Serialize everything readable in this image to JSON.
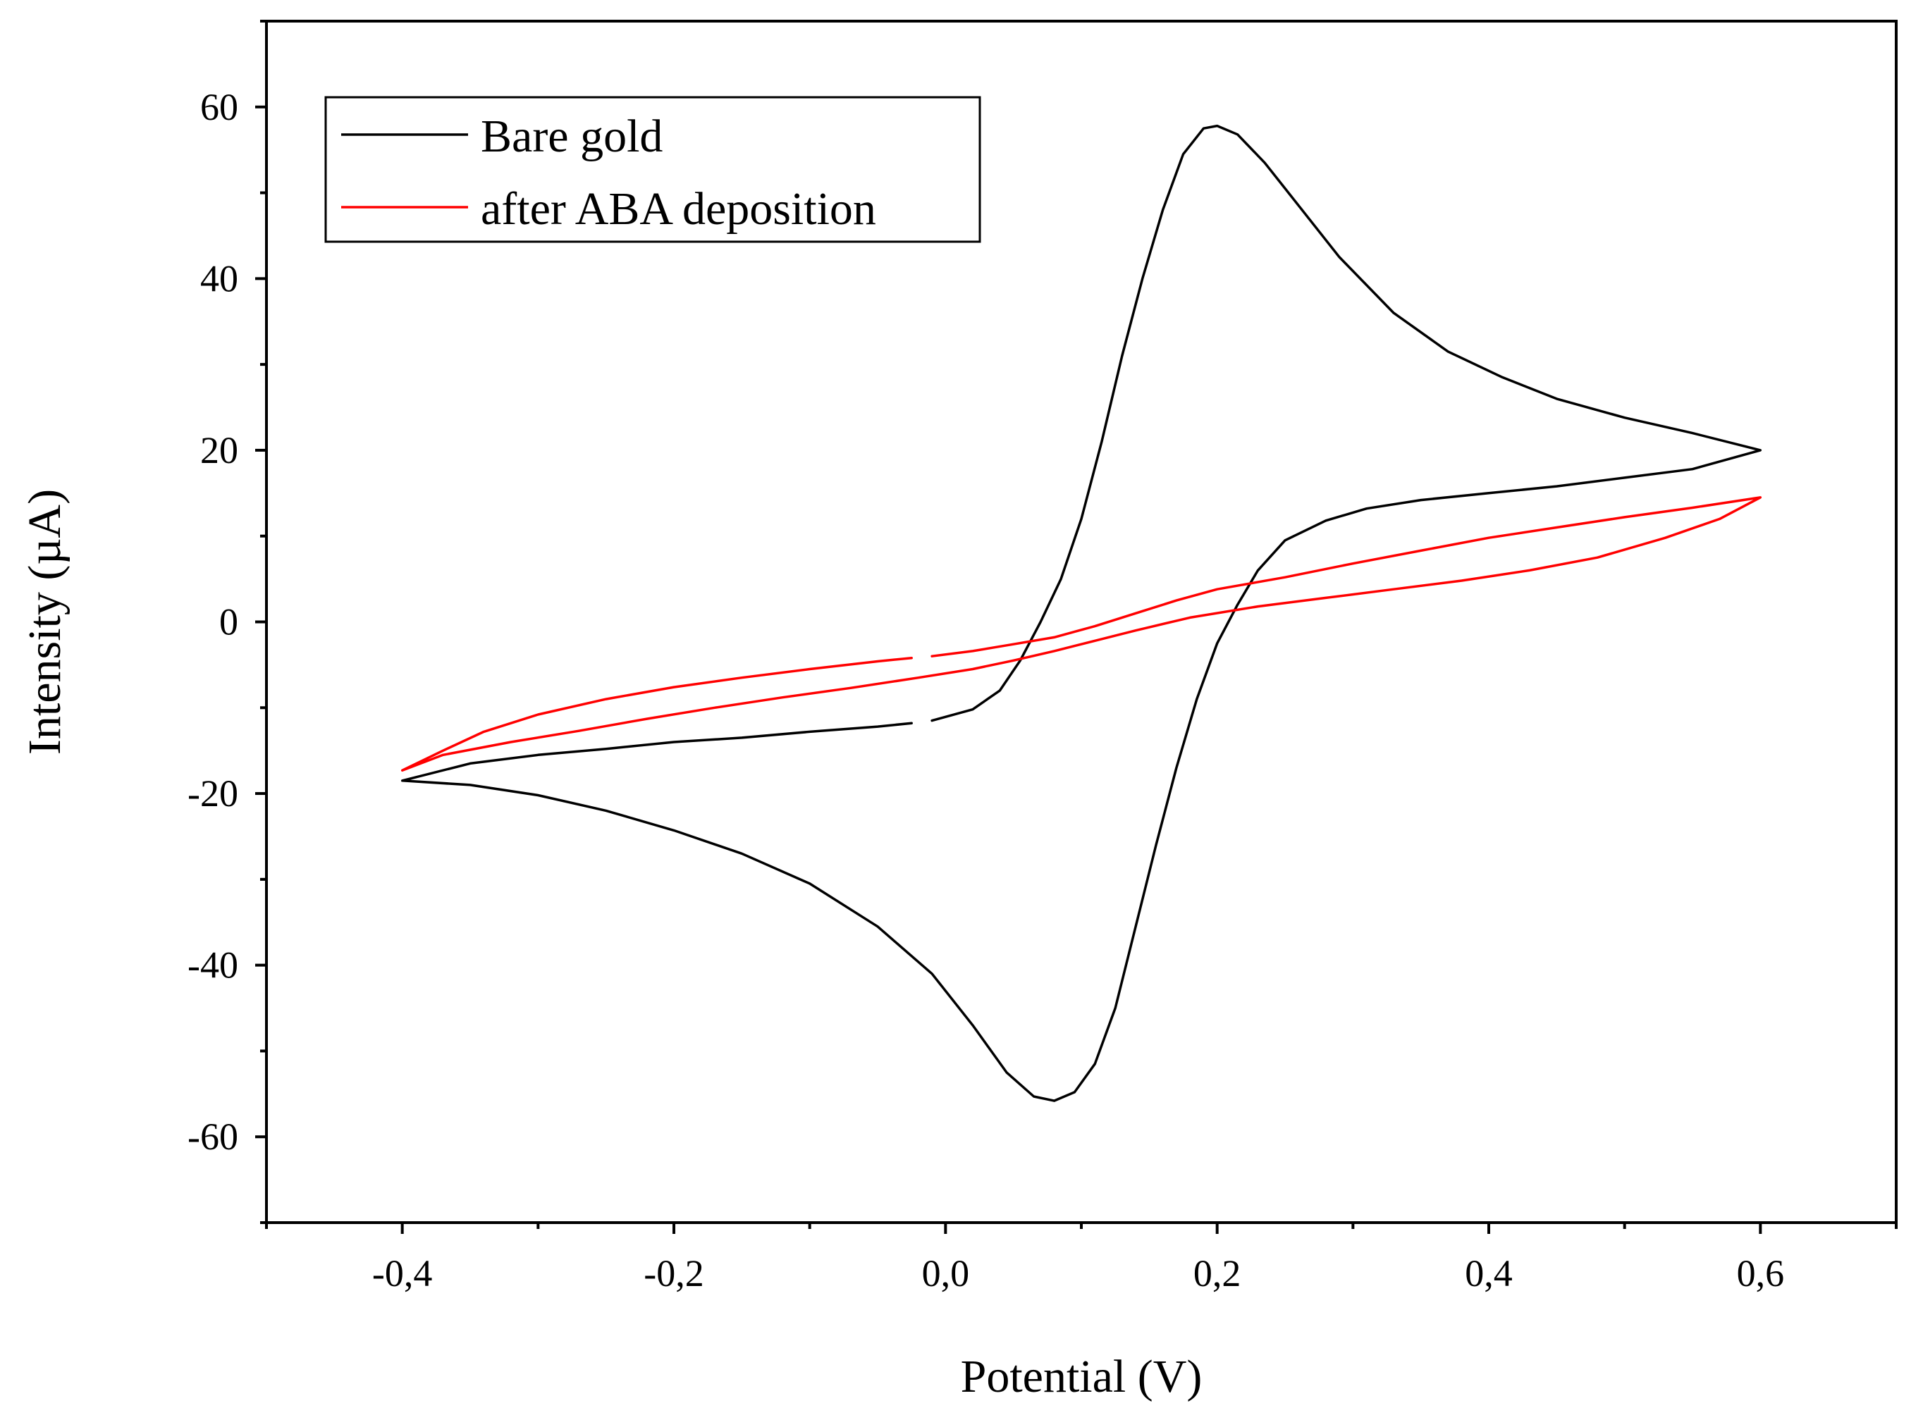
{
  "chart_data": {
    "type": "line",
    "title": "",
    "xlabel": "Potential (V)",
    "ylabel": "Intensity (µA)",
    "xlim": [
      -0.5,
      0.7
    ],
    "ylim": [
      -70,
      70
    ],
    "x_ticks": [
      -0.4,
      -0.2,
      0.0,
      0.2,
      0.4,
      0.6
    ],
    "x_tick_labels": [
      "-0,4",
      "-0,2",
      "0,0",
      "0,2",
      "0,4",
      "0,6"
    ],
    "y_ticks": [
      -60,
      -40,
      -20,
      0,
      20,
      40,
      60
    ],
    "y_tick_labels": [
      "-60",
      "-40",
      "-20",
      "0",
      "20",
      "40",
      "60"
    ],
    "grid": false,
    "legend_position": "top-left",
    "series": [
      {
        "name": "Bare gold",
        "color": "#000000",
        "points": [
          [
            -0.01,
            -11.5
          ],
          [
            0.02,
            -10.2
          ],
          [
            0.04,
            -8.0
          ],
          [
            0.055,
            -4.5
          ],
          [
            0.07,
            0.0
          ],
          [
            0.085,
            5.0
          ],
          [
            0.1,
            12.0
          ],
          [
            0.115,
            21.0
          ],
          [
            0.13,
            31.0
          ],
          [
            0.145,
            40.0
          ],
          [
            0.16,
            48.0
          ],
          [
            0.175,
            54.5
          ],
          [
            0.19,
            57.5
          ],
          [
            0.2,
            57.8
          ],
          [
            0.215,
            56.8
          ],
          [
            0.235,
            53.5
          ],
          [
            0.26,
            48.5
          ],
          [
            0.29,
            42.5
          ],
          [
            0.33,
            36.0
          ],
          [
            0.37,
            31.5
          ],
          [
            0.41,
            28.5
          ],
          [
            0.45,
            26.0
          ],
          [
            0.5,
            23.8
          ],
          [
            0.55,
            22.0
          ],
          [
            0.6,
            20.0
          ],
          [
            0.55,
            17.8
          ],
          [
            0.5,
            16.8
          ],
          [
            0.45,
            15.8
          ],
          [
            0.4,
            15.0
          ],
          [
            0.35,
            14.2
          ],
          [
            0.31,
            13.2
          ],
          [
            0.28,
            11.8
          ],
          [
            0.25,
            9.5
          ],
          [
            0.23,
            6.0
          ],
          [
            0.215,
            2.0
          ],
          [
            0.2,
            -2.5
          ],
          [
            0.185,
            -9.0
          ],
          [
            0.17,
            -17.0
          ],
          [
            0.155,
            -26.0
          ],
          [
            0.14,
            -35.5
          ],
          [
            0.125,
            -45.0
          ],
          [
            0.11,
            -51.5
          ],
          [
            0.095,
            -54.8
          ],
          [
            0.08,
            -55.8
          ],
          [
            0.065,
            -55.3
          ],
          [
            0.045,
            -52.5
          ],
          [
            0.02,
            -47.0
          ],
          [
            -0.01,
            -41.0
          ],
          [
            -0.05,
            -35.5
          ],
          [
            -0.1,
            -30.5
          ],
          [
            -0.15,
            -27.0
          ],
          [
            -0.2,
            -24.3
          ],
          [
            -0.25,
            -22.0
          ],
          [
            -0.3,
            -20.2
          ],
          [
            -0.35,
            -19.0
          ],
          [
            -0.4,
            -18.5
          ],
          [
            -0.35,
            -16.5
          ],
          [
            -0.3,
            -15.5
          ],
          [
            -0.25,
            -14.8
          ],
          [
            -0.2,
            -14.0
          ],
          [
            -0.15,
            -13.5
          ],
          [
            -0.1,
            -12.8
          ],
          [
            -0.05,
            -12.2
          ],
          [
            -0.025,
            -11.8
          ]
        ]
      },
      {
        "name": "after ABA deposition",
        "color": "#ff0000",
        "points": [
          [
            -0.01,
            -4.0
          ],
          [
            0.02,
            -3.4
          ],
          [
            0.05,
            -2.6
          ],
          [
            0.08,
            -1.8
          ],
          [
            0.11,
            -0.5
          ],
          [
            0.14,
            1.0
          ],
          [
            0.17,
            2.5
          ],
          [
            0.2,
            3.8
          ],
          [
            0.25,
            5.2
          ],
          [
            0.3,
            6.8
          ],
          [
            0.35,
            8.3
          ],
          [
            0.4,
            9.8
          ],
          [
            0.45,
            11.0
          ],
          [
            0.5,
            12.2
          ],
          [
            0.55,
            13.3
          ],
          [
            0.6,
            14.5
          ],
          [
            0.57,
            12.0
          ],
          [
            0.53,
            9.8
          ],
          [
            0.48,
            7.5
          ],
          [
            0.43,
            6.0
          ],
          [
            0.38,
            4.8
          ],
          [
            0.33,
            3.8
          ],
          [
            0.28,
            2.8
          ],
          [
            0.23,
            1.8
          ],
          [
            0.18,
            0.5
          ],
          [
            0.14,
            -1.0
          ],
          [
            0.11,
            -2.2
          ],
          [
            0.08,
            -3.4
          ],
          [
            0.05,
            -4.5
          ],
          [
            0.02,
            -5.5
          ],
          [
            -0.02,
            -6.5
          ],
          [
            -0.07,
            -7.7
          ],
          [
            -0.12,
            -8.8
          ],
          [
            -0.17,
            -10.0
          ],
          [
            -0.22,
            -11.3
          ],
          [
            -0.27,
            -12.7
          ],
          [
            -0.32,
            -14.0
          ],
          [
            -0.37,
            -15.5
          ],
          [
            -0.4,
            -17.3
          ],
          [
            -0.37,
            -15.0
          ],
          [
            -0.34,
            -12.8
          ],
          [
            -0.3,
            -10.8
          ],
          [
            -0.25,
            -9.0
          ],
          [
            -0.2,
            -7.6
          ],
          [
            -0.15,
            -6.5
          ],
          [
            -0.1,
            -5.5
          ],
          [
            -0.05,
            -4.6
          ],
          [
            -0.025,
            -4.2
          ]
        ]
      }
    ]
  }
}
